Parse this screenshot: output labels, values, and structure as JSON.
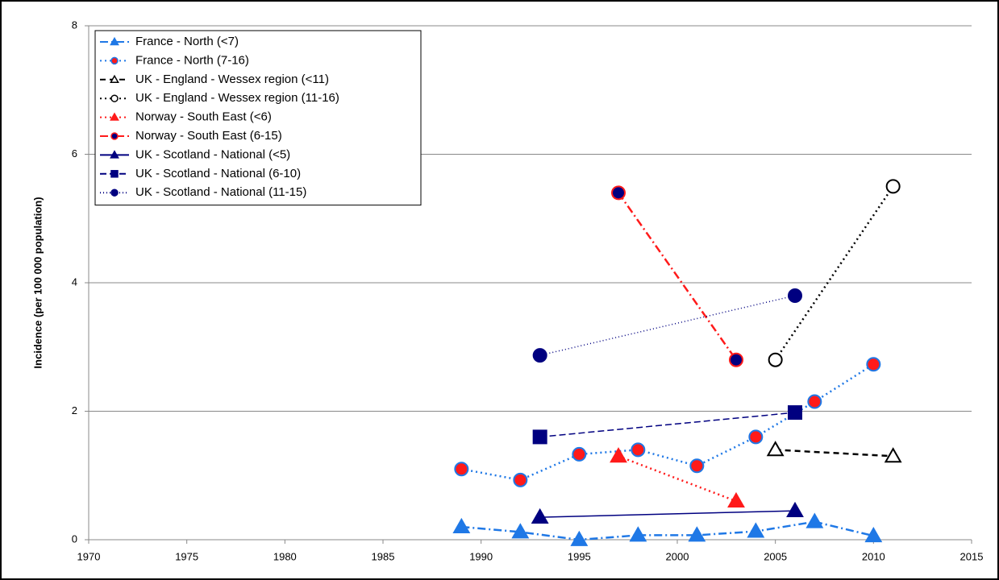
{
  "chart_data": {
    "type": "line",
    "ylabel": "Incidence  (per 100 000 population)",
    "xlim": [
      1970,
      2015
    ],
    "xticks": [
      1970,
      1975,
      1980,
      1985,
      1990,
      1995,
      2000,
      2005,
      2010,
      2015
    ],
    "ylim": [
      0,
      8
    ],
    "yticks": [
      0,
      2,
      4,
      6,
      8
    ],
    "grid": true,
    "legend": "upper-left",
    "series": [
      {
        "name": "France - North  (<7)",
        "color": "#1f78e6",
        "marker": "triangle",
        "fill": "#1f78e6",
        "dash": "10 4 2 4",
        "x": [
          1989,
          1992,
          1995,
          1998,
          2001,
          2004,
          2007,
          2010
        ],
        "values": [
          0.2,
          0.12,
          0.0,
          0.07,
          0.07,
          0.13,
          0.28,
          0.06
        ]
      },
      {
        "name": "France - North  (7-16)",
        "color": "#1f78e6",
        "marker": "circle",
        "fill": "#ff1a1a",
        "dash": "2 4",
        "x": [
          1989,
          1992,
          1995,
          1998,
          2001,
          2004,
          2007,
          2010
        ],
        "values": [
          1.1,
          0.93,
          1.33,
          1.4,
          1.15,
          1.6,
          2.15,
          2.73
        ]
      },
      {
        "name": "UK - England - Wessex region  (<11)",
        "color": "#000000",
        "marker": "triangle",
        "fill": "#ffffff",
        "dash": "7 5",
        "x": [
          2005,
          2011
        ],
        "values": [
          1.4,
          1.3
        ]
      },
      {
        "name": "UK - England - Wessex region  (11-16)",
        "color": "#000000",
        "marker": "circle",
        "fill": "#ffffff",
        "dash": "2 4",
        "x": [
          2005,
          2011
        ],
        "values": [
          2.8,
          5.5
        ]
      },
      {
        "name": "Norway - South East  (<6)",
        "color": "#ff1a1a",
        "marker": "triangle",
        "fill": "#ff1a1a",
        "dash": "2 4",
        "x": [
          1997,
          2003
        ],
        "values": [
          1.3,
          0.6
        ]
      },
      {
        "name": "Norway - South East  (6-15)",
        "color": "#ff1a1a",
        "marker": "circle",
        "fill": "#000080",
        "dash": "10 4 2 4",
        "x": [
          1997,
          2003
        ],
        "values": [
          5.4,
          2.8
        ]
      },
      {
        "name": "UK - Scotland - National  (<5)",
        "color": "#000080",
        "marker": "triangle",
        "fill": "#000080",
        "dash": "none",
        "x": [
          1993,
          2006
        ],
        "values": [
          0.35,
          0.45
        ]
      },
      {
        "name": "UK - Scotland - National  (6-10)",
        "color": "#000080",
        "marker": "square",
        "fill": "#000080",
        "dash": "8 4",
        "x": [
          1993,
          2006
        ],
        "values": [
          1.6,
          1.98
        ]
      },
      {
        "name": "UK - Scotland - National  (11-15)",
        "color": "#000080",
        "marker": "circle",
        "fill": "#000080",
        "dash": "1 3",
        "x": [
          1993,
          2006
        ],
        "values": [
          2.87,
          3.8
        ]
      }
    ]
  }
}
